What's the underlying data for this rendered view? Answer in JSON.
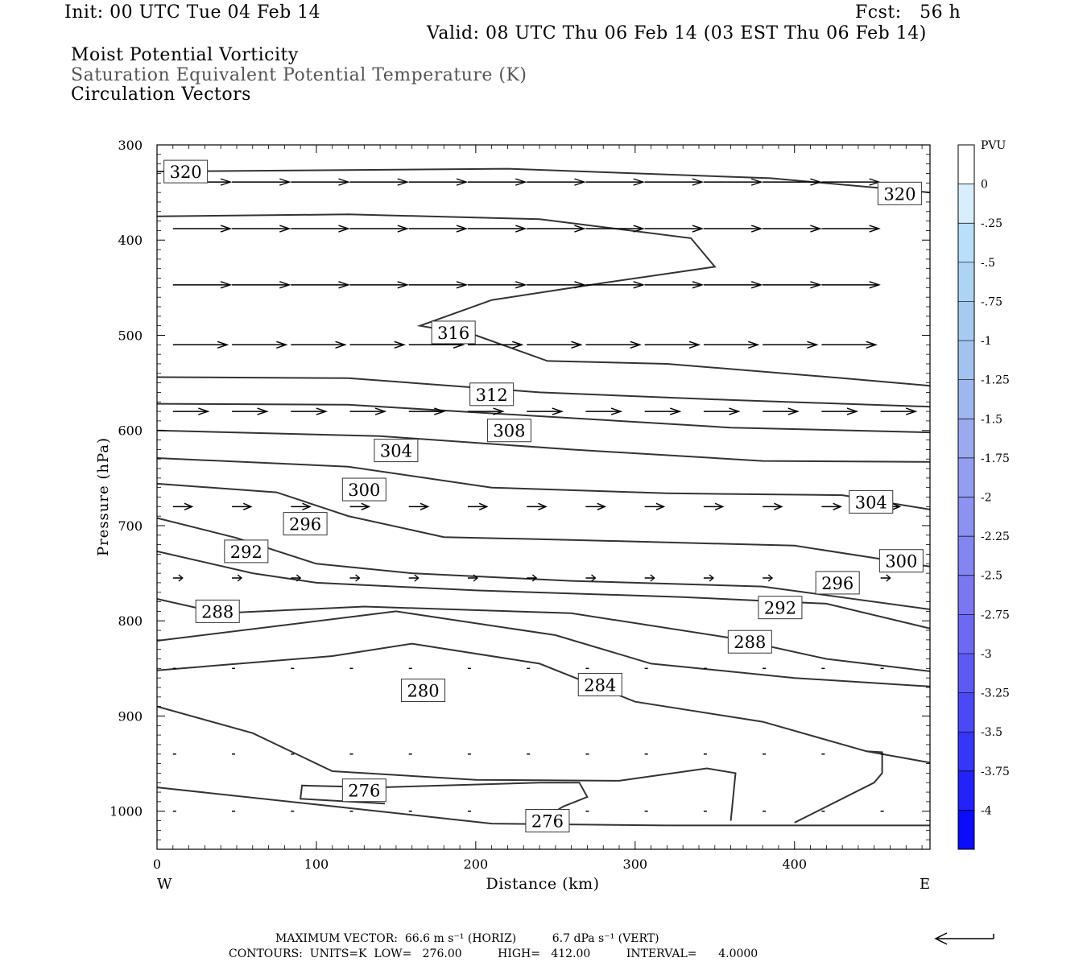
{
  "header": {
    "init": "Init: 00 UTC Tue 04 Feb 14",
    "fcst": "Fcst:   56 h",
    "valid": "Valid: 08 UTC Thu 06 Feb 14 (03 EST Thu 06 Feb 14)",
    "line1": "Moist Potential Vorticity",
    "line2": "Saturation Equivalent Potential Temperature (K)",
    "line3": "Circulation Vectors"
  },
  "footer": {
    "max_vector": "MAXIMUM VECTOR:  66.6 m s⁻¹ (HORIZ)          6.7 dPa s⁻¹ (VERT)",
    "contours": "CONTOURS:  UNITS=K  LOW=   276.00          HIGH=   412.00          INTERVAL=      4.0000"
  },
  "chart_data": {
    "type": "cross-section contour",
    "xlabel": "Distance (km)",
    "ylabel": "Pressure (hPa)",
    "xlim": [
      0,
      485
    ],
    "ylim": [
      1040,
      300
    ],
    "x_ticks": [
      "0",
      "100",
      "200",
      "300",
      "400"
    ],
    "y_ticks": [
      "300",
      "400",
      "500",
      "600",
      "700",
      "800",
      "900",
      "1000"
    ],
    "x_end_labels": {
      "left": "W",
      "right": "E"
    },
    "colorbar": {
      "unit": "PVU",
      "labels": [
        "0",
        "-.25",
        "-.5",
        "-.75",
        "-1",
        "-1.25",
        "-1.5",
        "-1.75",
        "-2",
        "-2.25",
        "-2.5",
        "-2.75",
        "-3",
        "-3.25",
        "-3.5",
        "-3.75",
        "-4"
      ],
      "colors": [
        "#ffffff",
        "#d8eefc",
        "#b8e0fa",
        "#aed4f4",
        "#a6cbf1",
        "#a2c2ef",
        "#9eb7ee",
        "#99abee",
        "#939ef0",
        "#8c92ef",
        "#8385f0",
        "#7a77f1",
        "#6d69f2",
        "#5d5af3",
        "#4a4af5",
        "#3636f7",
        "#2222f9",
        "#0c0cfc"
      ]
    },
    "contour_labels": [
      {
        "text": "320",
        "x": 18,
        "p": 328
      },
      {
        "text": "320",
        "x": 466,
        "p": 351
      },
      {
        "text": "316",
        "x": 186,
        "p": 497
      },
      {
        "text": "312",
        "x": 210,
        "p": 562
      },
      {
        "text": "308",
        "x": 221,
        "p": 600
      },
      {
        "text": "304",
        "x": 150,
        "p": 621
      },
      {
        "text": "304",
        "x": 448,
        "p": 675
      },
      {
        "text": "300",
        "x": 130,
        "p": 662
      },
      {
        "text": "300",
        "x": 467,
        "p": 737
      },
      {
        "text": "296",
        "x": 93,
        "p": 698
      },
      {
        "text": "296",
        "x": 427,
        "p": 760
      },
      {
        "text": "292",
        "x": 56,
        "p": 727
      },
      {
        "text": "292",
        "x": 391,
        "p": 786
      },
      {
        "text": "288",
        "x": 38,
        "p": 790
      },
      {
        "text": "288",
        "x": 372,
        "p": 822
      },
      {
        "text": "284",
        "x": 278,
        "p": 867
      },
      {
        "text": "280",
        "x": 167,
        "p": 873
      },
      {
        "text": "276",
        "x": 130,
        "p": 978
      },
      {
        "text": "276",
        "x": 245,
        "p": 1010
      }
    ],
    "contours": [
      [
        [
          0,
          328
        ],
        [
          220,
          325
        ],
        [
          385,
          335
        ],
        [
          485,
          350
        ]
      ],
      [
        [
          0,
          375
        ],
        [
          120,
          373
        ],
        [
          240,
          378
        ],
        [
          335,
          398
        ],
        [
          350,
          428
        ],
        [
          280,
          445
        ],
        [
          210,
          463
        ],
        [
          165,
          490
        ],
        [
          200,
          500
        ],
        [
          245,
          527
        ],
        [
          320,
          530
        ],
        [
          430,
          545
        ],
        [
          485,
          553
        ]
      ],
      [
        [
          0,
          544
        ],
        [
          120,
          545
        ],
        [
          240,
          560
        ],
        [
          360,
          568
        ],
        [
          485,
          575
        ]
      ],
      [
        [
          0,
          572
        ],
        [
          120,
          573
        ],
        [
          240,
          585
        ],
        [
          360,
          597
        ],
        [
          485,
          602
        ]
      ],
      [
        [
          0,
          600
        ],
        [
          140,
          606
        ],
        [
          260,
          620
        ],
        [
          380,
          632
        ],
        [
          485,
          633
        ]
      ],
      [
        [
          0,
          629
        ],
        [
          120,
          638
        ],
        [
          210,
          660
        ],
        [
          320,
          666
        ],
        [
          430,
          668
        ],
        [
          485,
          683
        ]
      ],
      [
        [
          0,
          656
        ],
        [
          75,
          665
        ],
        [
          120,
          690
        ],
        [
          180,
          712
        ],
        [
          260,
          715
        ],
        [
          400,
          721
        ],
        [
          485,
          743
        ]
      ],
      [
        [
          0,
          692
        ],
        [
          50,
          713
        ],
        [
          100,
          740
        ],
        [
          160,
          750
        ],
        [
          260,
          758
        ],
        [
          380,
          764
        ],
        [
          485,
          788
        ]
      ],
      [
        [
          0,
          727
        ],
        [
          60,
          750
        ],
        [
          100,
          760
        ],
        [
          200,
          768
        ],
        [
          330,
          775
        ],
        [
          420,
          782
        ],
        [
          485,
          808
        ]
      ],
      [
        [
          0,
          777
        ],
        [
          40,
          792
        ],
        [
          130,
          785
        ],
        [
          260,
          792
        ],
        [
          360,
          818
        ],
        [
          420,
          840
        ],
        [
          485,
          853
        ]
      ],
      [
        [
          0,
          821
        ],
        [
          150,
          790
        ],
        [
          250,
          815
        ],
        [
          310,
          845
        ],
        [
          400,
          860
        ],
        [
          485,
          869
        ]
      ],
      [
        [
          0,
          852
        ],
        [
          110,
          837
        ],
        [
          160,
          824
        ],
        [
          240,
          845
        ],
        [
          300,
          885
        ],
        [
          380,
          906
        ],
        [
          445,
          937
        ],
        [
          485,
          949
        ]
      ],
      [
        [
          0,
          890
        ],
        [
          60,
          918
        ],
        [
          110,
          958
        ],
        [
          200,
          967
        ],
        [
          290,
          968
        ],
        [
          345,
          955
        ],
        [
          363,
          960
        ],
        [
          360,
          1010
        ]
      ],
      [
        [
          0,
          975
        ],
        [
          100,
          993
        ],
        [
          210,
          1013
        ],
        [
          320,
          1015
        ],
        [
          485,
          1015
        ]
      ],
      [
        [
          143,
          992
        ],
        [
          90,
          987
        ],
        [
          91,
          973
        ],
        [
          140,
          975
        ],
        [
          240,
          970
        ],
        [
          265,
          970
        ],
        [
          270,
          985
        ],
        [
          255,
          995
        ],
        [
          250,
          1000
        ]
      ],
      [
        [
          400,
          1012
        ],
        [
          450,
          970
        ],
        [
          455,
          960
        ],
        [
          455,
          938
        ],
        [
          445,
          937
        ]
      ]
    ],
    "vector_rows": [
      {
        "p": 339,
        "len_km": 36
      },
      {
        "p": 388,
        "len_km": 36
      },
      {
        "p": 447,
        "len_km": 36
      },
      {
        "p": 510,
        "len_km": 34
      },
      {
        "p": 580,
        "len_km": 22
      },
      {
        "p": 680,
        "len_km": 12
      },
      {
        "p": 755,
        "len_km": 6
      },
      {
        "p": 850,
        "len_km": 2
      },
      {
        "p": 940,
        "len_km": 2
      },
      {
        "p": 1000,
        "len_km": 2
      }
    ]
  }
}
